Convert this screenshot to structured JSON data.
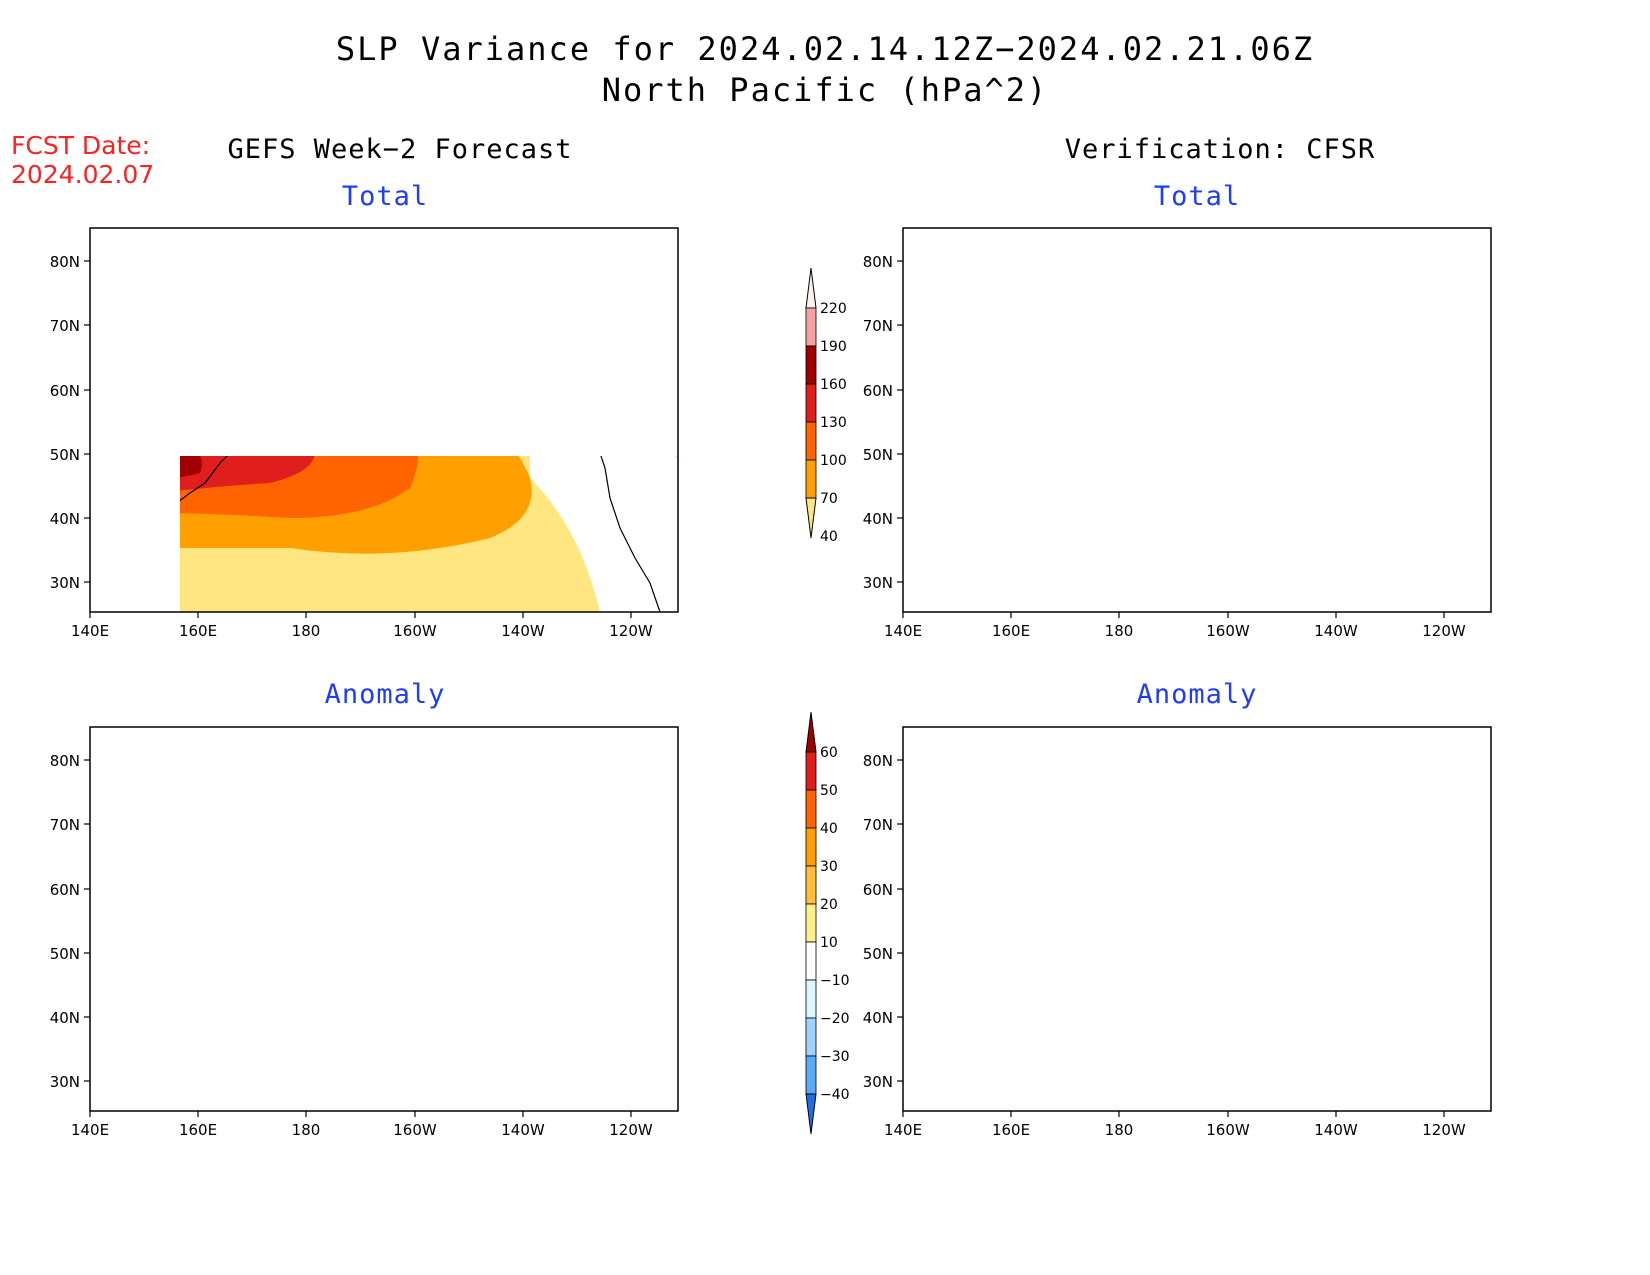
{
  "header": {
    "title_line1": "SLP Variance for 2024.02.14.12Z−2024.02.21.06Z",
    "title_line2": "North Pacific (hPa^2)",
    "fcst_label": "FCST Date:",
    "fcst_date": "2024.02.07"
  },
  "columns": {
    "left": "GEFS Week−2 Forecast",
    "right": "Verification: CFSR"
  },
  "panels": [
    {
      "id": "gefs-total",
      "title": "Total"
    },
    {
      "id": "cfsr-total",
      "title": "Total"
    },
    {
      "id": "gefs-anomaly",
      "title": "Anomaly"
    },
    {
      "id": "cfsr-anomaly",
      "title": "Anomaly"
    }
  ],
  "axes": {
    "lat_labels": [
      "80N",
      "70N",
      "60N",
      "50N",
      "40N",
      "30N"
    ],
    "lon_labels": [
      "140E",
      "160E",
      "180",
      "160W",
      "140W",
      "120W"
    ]
  },
  "colorbars": {
    "total": {
      "labels": [
        "220",
        "190",
        "160",
        "130",
        "100",
        "70",
        "40"
      ],
      "colors": [
        "#fff0f0",
        "#f4a2a2",
        "#a00000",
        "#e01e1e",
        "#ff6400",
        "#ffa000",
        "#ffe680"
      ]
    },
    "anomaly": {
      "labels": [
        "60",
        "50",
        "40",
        "30",
        "20",
        "10",
        "−10",
        "−20",
        "−30",
        "−40"
      ],
      "colors": [
        "#a00000",
        "#e01e1e",
        "#ff6400",
        "#ffa000",
        "#ffbe3c",
        "#fff08c",
        "#ffffff",
        "#dcf8ff",
        "#a0d2ff",
        "#5aaaf5",
        "#1e6ee6"
      ]
    }
  }
}
